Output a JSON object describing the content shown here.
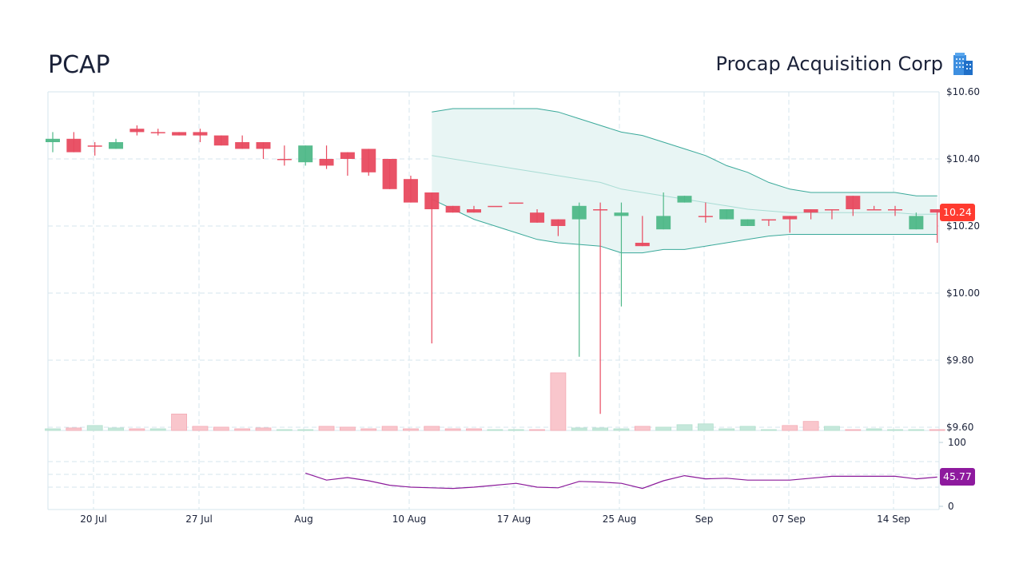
{
  "header": {
    "ticker": "PCAP",
    "company_name": "Procap Acquisition Corp",
    "company_icon": "office-building-icon"
  },
  "colors": {
    "up": "#4fb888",
    "down": "#e84a5f",
    "band_line": "#3aa99a",
    "band_fill": "#e8f5f4",
    "band_mid": "#a8dcd4",
    "vol_up": "#c5e8db",
    "vol_down": "#f9c6cc",
    "rsi_line": "#8b1a9a",
    "grid": "#d5e6ec",
    "price_badge": "#ff3b30",
    "rsi_badge": "#8e1a9e"
  },
  "chart_data": {
    "type": "candlestick",
    "title": "PCAP",
    "subtitle": "Procap Acquisition Corp",
    "x_tick_labels": [
      "20 Jul",
      "27 Jul",
      "Aug",
      "10 Aug",
      "17 Aug",
      "25 Aug",
      "Sep",
      "07 Sep",
      "14 Sep"
    ],
    "price_axis": {
      "ticks": [
        "$10.60",
        "$10.40",
        "$10.20",
        "$10.00",
        "$9.80",
        "$9.60"
      ],
      "range": [
        9.6,
        10.6
      ]
    },
    "rsi_axis": {
      "ticks": [
        "100",
        "0"
      ],
      "range": [
        0,
        100
      ]
    },
    "last_price": "10.24",
    "last_rsi": "45.77",
    "grid": true,
    "candles": [
      {
        "o": 10.45,
        "c": 10.46,
        "h": 10.48,
        "l": 10.42
      },
      {
        "o": 10.46,
        "c": 10.42,
        "h": 10.48,
        "l": 10.42
      },
      {
        "o": 10.44,
        "c": 10.44,
        "h": 10.45,
        "l": 10.41
      },
      {
        "o": 10.43,
        "c": 10.45,
        "h": 10.46,
        "l": 10.43
      },
      {
        "o": 10.49,
        "c": 10.48,
        "h": 10.5,
        "l": 10.47
      },
      {
        "o": 10.48,
        "c": 10.48,
        "h": 10.49,
        "l": 10.47
      },
      {
        "o": 10.48,
        "c": 10.47,
        "h": 10.48,
        "l": 10.47
      },
      {
        "o": 10.48,
        "c": 10.47,
        "h": 10.49,
        "l": 10.45
      },
      {
        "o": 10.47,
        "c": 10.44,
        "h": 10.47,
        "l": 10.44
      },
      {
        "o": 10.45,
        "c": 10.43,
        "h": 10.47,
        "l": 10.43
      },
      {
        "o": 10.45,
        "c": 10.43,
        "h": 10.45,
        "l": 10.4
      },
      {
        "o": 10.4,
        "c": 10.4,
        "h": 10.44,
        "l": 10.38
      },
      {
        "o": 10.39,
        "c": 10.44,
        "h": 10.44,
        "l": 10.38
      },
      {
        "o": 10.4,
        "c": 10.38,
        "h": 10.44,
        "l": 10.37
      },
      {
        "o": 10.42,
        "c": 10.4,
        "h": 10.42,
        "l": 10.35
      },
      {
        "o": 10.43,
        "c": 10.36,
        "h": 10.43,
        "l": 10.35
      },
      {
        "o": 10.4,
        "c": 10.31,
        "h": 10.4,
        "l": 10.31
      },
      {
        "o": 10.34,
        "c": 10.27,
        "h": 10.35,
        "l": 10.27
      },
      {
        "o": 10.3,
        "c": 10.25,
        "h": 10.3,
        "l": 9.85
      },
      {
        "o": 10.26,
        "c": 10.24,
        "h": 10.26,
        "l": 10.24
      },
      {
        "o": 10.25,
        "c": 10.24,
        "h": 10.26,
        "l": 10.24
      },
      {
        "o": 10.26,
        "c": 10.26,
        "h": 10.26,
        "l": 10.26
      },
      {
        "o": 10.27,
        "c": 10.27,
        "h": 10.27,
        "l": 10.27
      },
      {
        "o": 10.24,
        "c": 10.21,
        "h": 10.25,
        "l": 10.21
      },
      {
        "o": 10.22,
        "c": 10.2,
        "h": 10.22,
        "l": 10.17
      },
      {
        "o": 10.22,
        "c": 10.26,
        "h": 10.27,
        "l": 9.81
      },
      {
        "o": 10.25,
        "c": 10.25,
        "h": 10.27,
        "l": 9.64
      },
      {
        "o": 10.23,
        "c": 10.24,
        "h": 10.27,
        "l": 9.96
      },
      {
        "o": 10.15,
        "c": 10.14,
        "h": 10.23,
        "l": 10.14
      },
      {
        "o": 10.19,
        "c": 10.23,
        "h": 10.3,
        "l": 10.19
      },
      {
        "o": 10.27,
        "c": 10.29,
        "h": 10.29,
        "l": 10.27
      },
      {
        "o": 10.23,
        "c": 10.23,
        "h": 10.27,
        "l": 10.21
      },
      {
        "o": 10.22,
        "c": 10.25,
        "h": 10.25,
        "l": 10.22
      },
      {
        "o": 10.2,
        "c": 10.22,
        "h": 10.22,
        "l": 10.2
      },
      {
        "o": 10.22,
        "c": 10.22,
        "h": 10.22,
        "l": 10.2
      },
      {
        "o": 10.23,
        "c": 10.22,
        "h": 10.23,
        "l": 10.18
      },
      {
        "o": 10.25,
        "c": 10.24,
        "h": 10.25,
        "l": 10.22
      },
      {
        "o": 10.25,
        "c": 10.25,
        "h": 10.25,
        "l": 10.22
      },
      {
        "o": 10.29,
        "c": 10.25,
        "h": 10.29,
        "l": 10.23
      },
      {
        "o": 10.25,
        "c": 10.25,
        "h": 10.26,
        "l": 10.25
      },
      {
        "o": 10.25,
        "c": 10.25,
        "h": 10.26,
        "l": 10.23
      },
      {
        "o": 10.19,
        "c": 10.23,
        "h": 10.24,
        "l": 10.19
      },
      {
        "o": 10.25,
        "c": 10.24,
        "h": 10.25,
        "l": 10.15
      }
    ],
    "volume_relative": [
      0.2,
      0.3,
      0.6,
      0.3,
      0.2,
      0.2,
      2.0,
      0.5,
      0.4,
      0.2,
      0.3,
      0.1,
      0.0,
      0.5,
      0.4,
      0.2,
      0.5,
      0.2,
      0.5,
      0.2,
      0.2,
      0.1,
      0.1,
      0.1,
      7.0,
      0.3,
      0.3,
      0.2,
      0.5,
      0.4,
      0.7,
      0.8,
      0.2,
      0.5,
      0.1,
      0.6,
      1.1,
      0.5,
      0.1,
      0.2,
      0.1,
      0.1,
      0.1
    ],
    "bollinger": {
      "start_index": 18,
      "upper": [
        10.54,
        10.55,
        10.55,
        10.55,
        10.55,
        10.55,
        10.54,
        10.52,
        10.5,
        10.48,
        10.47,
        10.45,
        10.43,
        10.41,
        10.38,
        10.36,
        10.33,
        10.31,
        10.3,
        10.3,
        10.3,
        10.3,
        10.3,
        10.29,
        10.29
      ],
      "middle": [
        10.41,
        10.4,
        10.39,
        10.38,
        10.37,
        10.36,
        10.35,
        10.34,
        10.33,
        10.31,
        10.3,
        10.29,
        10.28,
        10.27,
        10.26,
        10.25,
        10.245,
        10.24,
        10.24,
        10.24,
        10.24,
        10.24,
        10.24,
        10.235,
        10.235
      ],
      "lower": [
        10.28,
        10.25,
        10.22,
        10.2,
        10.18,
        10.16,
        10.15,
        10.145,
        10.14,
        10.12,
        10.12,
        10.13,
        10.13,
        10.14,
        10.15,
        10.16,
        10.17,
        10.175,
        10.175,
        10.175,
        10.175,
        10.175,
        10.175,
        10.175,
        10.175
      ]
    },
    "rsi": {
      "start_index": 12,
      "values": [
        52,
        41,
        45,
        40,
        33,
        30,
        29,
        28,
        30,
        33,
        36,
        30,
        29,
        39,
        38,
        36,
        28,
        40,
        48,
        43,
        44,
        41,
        41,
        41,
        44,
        47,
        47,
        47,
        47,
        43,
        45.77
      ]
    }
  }
}
